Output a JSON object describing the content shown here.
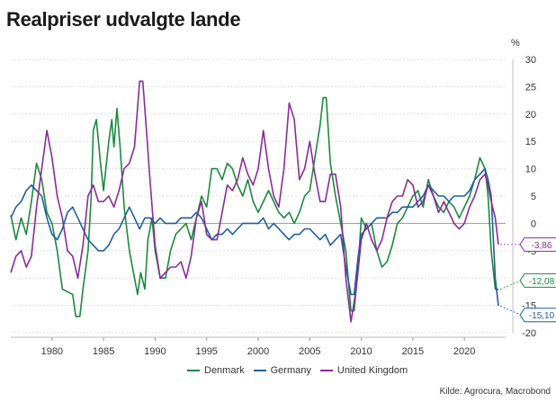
{
  "title": "Realpriser udvalgte lande",
  "source": "Kilde: Agrocura, Macrobond",
  "chart_data": {
    "type": "line",
    "ylabel": "%",
    "ylim": [
      -20,
      30
    ],
    "xlim": [
      1976,
      2024
    ],
    "x_ticks": [
      1980,
      1985,
      1990,
      1995,
      2000,
      2005,
      2010,
      2015,
      2020
    ],
    "y_ticks": [
      30,
      25,
      20,
      15,
      10,
      5,
      0,
      -5,
      -10,
      -15,
      -20
    ],
    "grid": true,
    "legend_position": "bottom",
    "series": [
      {
        "name": "Denmark",
        "color": "#1a8a3c",
        "end_label": "-12,08",
        "end_value": -12.08,
        "points": [
          [
            1976,
            1.5
          ],
          [
            1976.5,
            -3
          ],
          [
            1977,
            1
          ],
          [
            1977.5,
            -2
          ],
          [
            1978,
            4
          ],
          [
            1978.5,
            11
          ],
          [
            1979,
            8
          ],
          [
            1979.5,
            2
          ],
          [
            1980,
            0
          ],
          [
            1980.5,
            -5
          ],
          [
            1981,
            -12
          ],
          [
            1981.5,
            -12.5
          ],
          [
            1982,
            -13
          ],
          [
            1982.3,
            -17
          ],
          [
            1982.7,
            -17
          ],
          [
            1983,
            -12
          ],
          [
            1983.5,
            -5
          ],
          [
            1983.8,
            5
          ],
          [
            1984,
            17
          ],
          [
            1984.3,
            19
          ],
          [
            1984.7,
            11
          ],
          [
            1985,
            6
          ],
          [
            1985.5,
            15
          ],
          [
            1985.8,
            19
          ],
          [
            1986,
            14
          ],
          [
            1986.3,
            21
          ],
          [
            1986.6,
            14
          ],
          [
            1987,
            3
          ],
          [
            1987.5,
            -5
          ],
          [
            1988,
            -10
          ],
          [
            1988.3,
            -13
          ],
          [
            1988.6,
            -9
          ],
          [
            1989,
            -12
          ],
          [
            1989.3,
            -3
          ],
          [
            1989.7,
            1
          ],
          [
            1990,
            -5
          ],
          [
            1990.5,
            -10
          ],
          [
            1991,
            -10
          ],
          [
            1991.5,
            -5
          ],
          [
            1992,
            -2
          ],
          [
            1992.5,
            -1
          ],
          [
            1993,
            0
          ],
          [
            1993.5,
            -3
          ],
          [
            1994,
            1
          ],
          [
            1994.5,
            5
          ],
          [
            1995,
            3
          ],
          [
            1995.5,
            10
          ],
          [
            1996,
            10
          ],
          [
            1996.5,
            8
          ],
          [
            1997,
            11
          ],
          [
            1997.5,
            10
          ],
          [
            1998,
            7
          ],
          [
            1998.5,
            5
          ],
          [
            1999,
            8
          ],
          [
            1999.5,
            4
          ],
          [
            2000,
            2
          ],
          [
            2000.5,
            4
          ],
          [
            2001,
            6
          ],
          [
            2001.5,
            4
          ],
          [
            2002,
            2
          ],
          [
            2002.5,
            1
          ],
          [
            2003,
            2
          ],
          [
            2003.5,
            0
          ],
          [
            2004,
            2
          ],
          [
            2004.5,
            5
          ],
          [
            2005,
            6
          ],
          [
            2005.5,
            12
          ],
          [
            2006,
            18
          ],
          [
            2006.3,
            23
          ],
          [
            2006.6,
            23
          ],
          [
            2007,
            11
          ],
          [
            2007.5,
            5
          ],
          [
            2008,
            0
          ],
          [
            2008.5,
            -5
          ],
          [
            2009,
            -16
          ],
          [
            2009.3,
            -16
          ],
          [
            2009.7,
            -8
          ],
          [
            2010,
            1
          ],
          [
            2010.5,
            -1
          ],
          [
            2011,
            0
          ],
          [
            2011.5,
            -5
          ],
          [
            2012,
            -8
          ],
          [
            2012.5,
            -7
          ],
          [
            2013,
            -4
          ],
          [
            2013.5,
            0
          ],
          [
            2014,
            1
          ],
          [
            2014.5,
            3
          ],
          [
            2015,
            5
          ],
          [
            2015.5,
            6
          ],
          [
            2016,
            3
          ],
          [
            2016.5,
            8
          ],
          [
            2017,
            5
          ],
          [
            2017.5,
            3
          ],
          [
            2018,
            2
          ],
          [
            2018.5,
            4
          ],
          [
            2019,
            3
          ],
          [
            2019.5,
            1
          ],
          [
            2020,
            3
          ],
          [
            2020.5,
            5
          ],
          [
            2021,
            8
          ],
          [
            2021.5,
            12
          ],
          [
            2022,
            10
          ],
          [
            2022.3,
            5
          ],
          [
            2022.6,
            -5
          ],
          [
            2023,
            -12
          ],
          [
            2023.3,
            -12.08
          ]
        ]
      },
      {
        "name": "Germany",
        "color": "#1f5fa0",
        "end_label": "-15,10",
        "end_value": -15.1,
        "points": [
          [
            1976,
            1
          ],
          [
            1976.5,
            3
          ],
          [
            1977,
            4
          ],
          [
            1977.5,
            6
          ],
          [
            1978,
            7
          ],
          [
            1978.5,
            6
          ],
          [
            1979,
            5
          ],
          [
            1979.5,
            1
          ],
          [
            1980,
            -2
          ],
          [
            1980.5,
            -3
          ],
          [
            1981,
            -1
          ],
          [
            1981.5,
            2
          ],
          [
            1982,
            3
          ],
          [
            1982.5,
            1
          ],
          [
            1983,
            -1
          ],
          [
            1983.5,
            -3
          ],
          [
            1984,
            -4
          ],
          [
            1984.5,
            -5
          ],
          [
            1985,
            -5
          ],
          [
            1985.5,
            -4
          ],
          [
            1986,
            -2
          ],
          [
            1986.5,
            -1
          ],
          [
            1987,
            1
          ],
          [
            1987.5,
            3
          ],
          [
            1988,
            1
          ],
          [
            1988.5,
            -1
          ],
          [
            1989,
            1
          ],
          [
            1989.5,
            1
          ],
          [
            1990,
            0
          ],
          [
            1990.5,
            1
          ],
          [
            1991,
            0
          ],
          [
            1991.5,
            0
          ],
          [
            1992,
            0
          ],
          [
            1992.5,
            1
          ],
          [
            1993,
            1
          ],
          [
            1993.5,
            1
          ],
          [
            1994,
            2
          ],
          [
            1994.5,
            1
          ],
          [
            1995,
            -1
          ],
          [
            1995.5,
            -3
          ],
          [
            1996,
            -2
          ],
          [
            1996.5,
            -2
          ],
          [
            1997,
            -1
          ],
          [
            1997.5,
            -2
          ],
          [
            1998,
            -1
          ],
          [
            1998.5,
            0
          ],
          [
            1999,
            0
          ],
          [
            1999.5,
            0
          ],
          [
            2000,
            0
          ],
          [
            2000.5,
            1
          ],
          [
            2001,
            -1
          ],
          [
            2001.5,
            0
          ],
          [
            2002,
            -1
          ],
          [
            2002.5,
            -2
          ],
          [
            2003,
            -3
          ],
          [
            2003.5,
            -2
          ],
          [
            2004,
            -2
          ],
          [
            2004.5,
            -1
          ],
          [
            2005,
            -1
          ],
          [
            2005.5,
            -2
          ],
          [
            2006,
            -3
          ],
          [
            2006.5,
            -2
          ],
          [
            2007,
            -4
          ],
          [
            2007.5,
            -3
          ],
          [
            2008,
            -2
          ],
          [
            2008.5,
            -8
          ],
          [
            2009,
            -13
          ],
          [
            2009.3,
            -13
          ],
          [
            2009.7,
            -6
          ],
          [
            2010,
            -2
          ],
          [
            2010.5,
            -1
          ],
          [
            2011,
            0
          ],
          [
            2011.5,
            1
          ],
          [
            2012,
            1
          ],
          [
            2012.5,
            1
          ],
          [
            2013,
            2
          ],
          [
            2013.5,
            2
          ],
          [
            2014,
            3
          ],
          [
            2014.5,
            3
          ],
          [
            2015,
            3
          ],
          [
            2015.5,
            4
          ],
          [
            2016,
            5
          ],
          [
            2016.5,
            7
          ],
          [
            2017,
            6
          ],
          [
            2017.5,
            5
          ],
          [
            2018,
            5
          ],
          [
            2018.5,
            4
          ],
          [
            2019,
            5
          ],
          [
            2019.5,
            5
          ],
          [
            2020,
            5
          ],
          [
            2020.5,
            6
          ],
          [
            2021,
            8
          ],
          [
            2021.5,
            9
          ],
          [
            2022,
            10
          ],
          [
            2022.3,
            8
          ],
          [
            2022.6,
            5
          ],
          [
            2023,
            -10
          ],
          [
            2023.3,
            -15.1
          ]
        ]
      },
      {
        "name": "United Kingdom",
        "color": "#8a2b9a",
        "end_label": "-3,86",
        "end_value": -3.86,
        "points": [
          [
            1976,
            -9
          ],
          [
            1976.5,
            -6
          ],
          [
            1977,
            -5
          ],
          [
            1977.5,
            -8
          ],
          [
            1978,
            -6
          ],
          [
            1978.5,
            3
          ],
          [
            1979,
            10
          ],
          [
            1979.5,
            17
          ],
          [
            1980,
            12
          ],
          [
            1980.5,
            5
          ],
          [
            1981,
            1
          ],
          [
            1981.5,
            -5
          ],
          [
            1982,
            -6
          ],
          [
            1982.5,
            -10
          ],
          [
            1983,
            -4
          ],
          [
            1983.5,
            5
          ],
          [
            1984,
            7
          ],
          [
            1984.5,
            4
          ],
          [
            1985,
            4
          ],
          [
            1985.5,
            5
          ],
          [
            1986,
            3
          ],
          [
            1986.5,
            6
          ],
          [
            1987,
            10
          ],
          [
            1987.5,
            11
          ],
          [
            1988,
            14
          ],
          [
            1988.5,
            26
          ],
          [
            1988.8,
            26
          ],
          [
            1989,
            21
          ],
          [
            1989.5,
            8
          ],
          [
            1990,
            -4
          ],
          [
            1990.5,
            -10
          ],
          [
            1991,
            -9
          ],
          [
            1991.5,
            -8
          ],
          [
            1992,
            -8
          ],
          [
            1992.5,
            -7
          ],
          [
            1993,
            -10
          ],
          [
            1993.5,
            -6
          ],
          [
            1994,
            1
          ],
          [
            1994.5,
            4
          ],
          [
            1995,
            -2
          ],
          [
            1995.5,
            -3
          ],
          [
            1996,
            -3
          ],
          [
            1996.5,
            2
          ],
          [
            1997,
            7
          ],
          [
            1997.5,
            6
          ],
          [
            1998,
            8
          ],
          [
            1998.5,
            12
          ],
          [
            1999,
            9
          ],
          [
            1999.5,
            7
          ],
          [
            2000,
            10
          ],
          [
            2000.5,
            17
          ],
          [
            2001,
            10
          ],
          [
            2001.5,
            5
          ],
          [
            2002,
            3
          ],
          [
            2002.5,
            10
          ],
          [
            2003,
            22
          ],
          [
            2003.5,
            19
          ],
          [
            2004,
            8
          ],
          [
            2004.5,
            10
          ],
          [
            2005,
            15
          ],
          [
            2005.5,
            9
          ],
          [
            2006,
            4
          ],
          [
            2006.5,
            4
          ],
          [
            2007,
            9
          ],
          [
            2007.5,
            9
          ],
          [
            2008,
            3
          ],
          [
            2008.5,
            -10
          ],
          [
            2009,
            -18
          ],
          [
            2009.5,
            -12
          ],
          [
            2010,
            -3
          ],
          [
            2010.5,
            0
          ],
          [
            2011,
            -3
          ],
          [
            2011.5,
            -5
          ],
          [
            2012,
            -3
          ],
          [
            2012.5,
            1
          ],
          [
            2013,
            4
          ],
          [
            2013.5,
            5
          ],
          [
            2014,
            5
          ],
          [
            2014.5,
            8
          ],
          [
            2015,
            7
          ],
          [
            2015.5,
            3
          ],
          [
            2016,
            4
          ],
          [
            2016.5,
            7
          ],
          [
            2017,
            5
          ],
          [
            2017.5,
            2
          ],
          [
            2018,
            4
          ],
          [
            2018.5,
            2
          ],
          [
            2019,
            0
          ],
          [
            2019.5,
            -1
          ],
          [
            2020,
            0
          ],
          [
            2020.5,
            3
          ],
          [
            2021,
            5
          ],
          [
            2021.5,
            8
          ],
          [
            2022,
            9
          ],
          [
            2022.3,
            7
          ],
          [
            2022.6,
            4
          ],
          [
            2023,
            1
          ],
          [
            2023.3,
            -3.86
          ]
        ]
      }
    ]
  }
}
